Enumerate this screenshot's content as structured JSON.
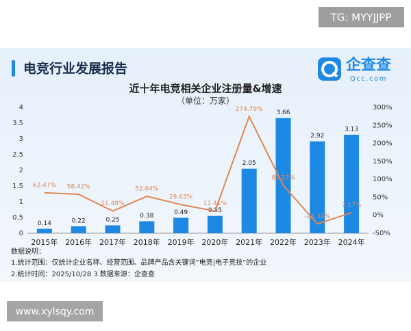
{
  "watermark": "TG: MYYJJPP",
  "header": {
    "title": "电竞行业发展报告",
    "logo": "企查查",
    "logo_sub": "Qcc.com"
  },
  "chart_data": {
    "type": "bar",
    "title": "近十年电竞相关企业注册量&增速",
    "subtitle": "（单位：万家）",
    "categories": [
      "2015年",
      "2016年",
      "2017年",
      "2018年",
      "2019年",
      "2020年",
      "2021年",
      "2022年",
      "2023年",
      "2024年"
    ],
    "series": [
      {
        "type": "bar",
        "color": "#1e88e5",
        "values": [
          0.14,
          0.22,
          0.25,
          0.38,
          0.49,
          0.55,
          2.05,
          3.66,
          2.92,
          3.13
        ]
      },
      {
        "type": "line",
        "axis": "y2",
        "color": "#e0874f",
        "values": [
          62.47,
          58.42,
          11.48,
          52.64,
          29.63,
          11.41,
          274.79,
          83.27,
          -24.32,
          7.17
        ],
        "value_labels": [
          "62.47%",
          "58.42%",
          "11.48%",
          "52.64%",
          "29.63%",
          "11.41%",
          "274.79%",
          "83.27%",
          "-24.32%",
          "7.17%"
        ]
      }
    ],
    "ylim": [
      0,
      4
    ],
    "yticks": [
      0,
      0.5,
      1,
      1.5,
      2,
      2.5,
      3,
      3.5,
      4
    ],
    "y2lim": [
      -50,
      300
    ],
    "y2ticks": [
      {
        "value": -50,
        "label": "-50%"
      },
      {
        "value": 0,
        "label": "0%"
      },
      {
        "value": 50,
        "label": "50%"
      },
      {
        "value": 100,
        "label": "100%"
      },
      {
        "value": 150,
        "label": "150%"
      },
      {
        "value": 200,
        "label": "200%"
      },
      {
        "value": 250,
        "label": "250%"
      },
      {
        "value": 300,
        "label": "300%"
      }
    ],
    "grid": false
  },
  "notes": [
    "数据说明：",
    "1.统计范围：仅统计企业名称、经营范围、品牌产品含关键词“电竞|电子竞技”的企业",
    "2.统计时间：2025/10/28 3.数据来源：企查查"
  ],
  "footer_watermark": "www.xylsqy.com"
}
